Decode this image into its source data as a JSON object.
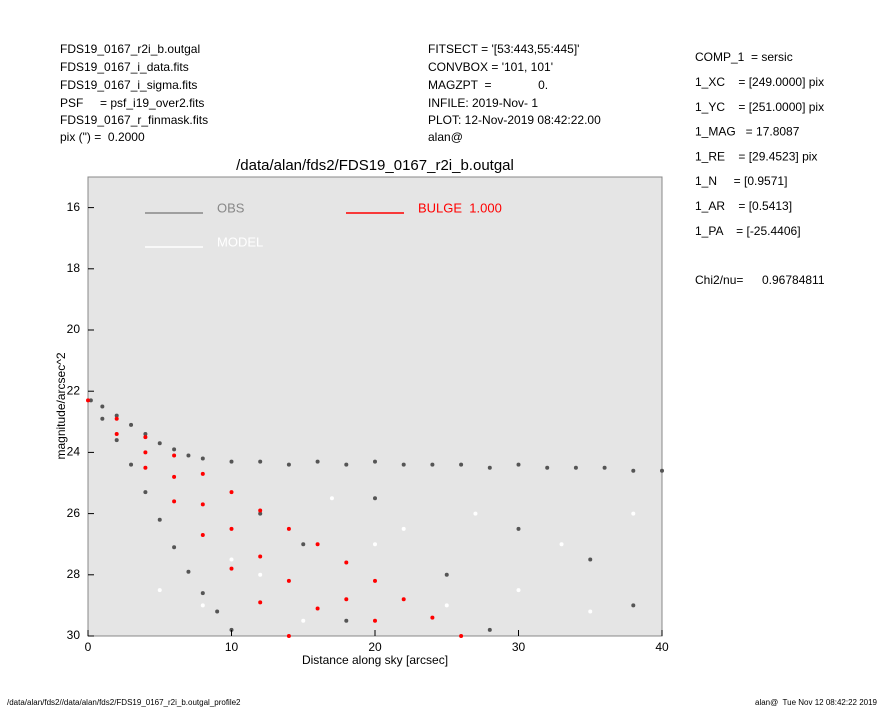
{
  "header": {
    "left": [
      "FDS19_0167_r2i_b.outgal",
      "FDS19_0167_i_data.fits",
      "FDS19_0167_i_sigma.fits",
      "PSF     = psf_i19_over2.fits",
      "FDS19_0167_r_finmask.fits",
      "pix (\") =  0.2000"
    ],
    "middle": [
      "FITSECT = '[53:443,55:445]'",
      "CONVBOX = '101, 101'",
      "MAGZPT  =              0.",
      "INFILE: 2019-Nov- 1",
      "PLOT: 12-Nov-2019 08:42:22.00",
      "alan@"
    ],
    "params": [
      "COMP_1  = sersic",
      "1_XC    = [249.0000] pix",
      "1_YC    = [251.0000] pix",
      "1_MAG   = 17.8087",
      "1_RE    = [29.4523] pix",
      "1_N     = [0.9571]",
      "1_AR    = [0.5413]",
      "1_PA    = [-25.4406]"
    ],
    "chi2_label": "Chi2/nu=",
    "chi2_value": "0.96784811"
  },
  "footer": {
    "left": "/data/alan/fds2//data/alan/fds2/FDS19_0167_r2i_b.outgal_profile2",
    "right": "alan@  Tue Nov 12 08:42:22 2019"
  },
  "chart_data": {
    "type": "scatter",
    "title": "/data/alan/fds2/FDS19_0167_r2i_b.outgal",
    "x_label": "Distance along sky [arcsec]",
    "y_label": "magnitude/arcsec^2",
    "xlim": [
      0,
      40
    ],
    "ylim": [
      30,
      15
    ],
    "xticks": [
      0,
      10,
      20,
      30,
      40
    ],
    "yticks": [
      16,
      18,
      20,
      22,
      24,
      26,
      28,
      30
    ],
    "background": "#e5e5e5",
    "series": [
      {
        "name": "OBS",
        "color": "#555555",
        "x": [
          0.2,
          1,
          2,
          3,
          4,
          5,
          6,
          7,
          8,
          10,
          12,
          14,
          16,
          18,
          20,
          22,
          24,
          26,
          28,
          30,
          32,
          34,
          36,
          38,
          40,
          1,
          2,
          3,
          4,
          5,
          6,
          7,
          8,
          9,
          10,
          12,
          15,
          20,
          25,
          30,
          35,
          38,
          18,
          28
        ],
        "values": [
          22.3,
          22.5,
          22.8,
          23.1,
          23.4,
          23.7,
          23.9,
          24.1,
          24.2,
          24.3,
          24.3,
          24.4,
          24.3,
          24.4,
          24.3,
          24.4,
          24.4,
          24.4,
          24.5,
          24.4,
          24.5,
          24.5,
          24.5,
          24.6,
          24.6,
          22.9,
          23.6,
          24.4,
          25.3,
          26.2,
          27.1,
          27.9,
          28.6,
          29.2,
          29.8,
          26,
          27,
          25.5,
          28,
          26.5,
          27.5,
          29,
          29.5,
          29.8
        ]
      },
      {
        "name": "MODEL",
        "color": "#ffffff",
        "x": [
          5,
          8,
          10,
          12,
          15,
          20,
          22,
          25,
          30,
          33,
          35,
          38,
          17,
          27
        ],
        "values": [
          28.5,
          29,
          27.5,
          28,
          29.5,
          27,
          26.5,
          29,
          28.5,
          27,
          29.2,
          26,
          25.5,
          26
        ]
      },
      {
        "name": "BULGE  1.000",
        "color": "#ff0000",
        "x": [
          0,
          2,
          4,
          6,
          8,
          10,
          12,
          14,
          16,
          18,
          20,
          22,
          24,
          26,
          2,
          4,
          6,
          8,
          10,
          12,
          14,
          4,
          6,
          8,
          10,
          12,
          14,
          16,
          18,
          20
        ],
        "values": [
          22.3,
          22.9,
          23.5,
          24.1,
          24.7,
          25.3,
          25.9,
          26.5,
          27.0,
          27.6,
          28.2,
          28.8,
          29.4,
          30,
          23.4,
          24.5,
          25.6,
          26.7,
          27.8,
          28.9,
          30,
          24.0,
          24.8,
          25.7,
          26.5,
          27.4,
          28.2,
          29.1,
          28.8,
          29.5
        ]
      }
    ]
  }
}
